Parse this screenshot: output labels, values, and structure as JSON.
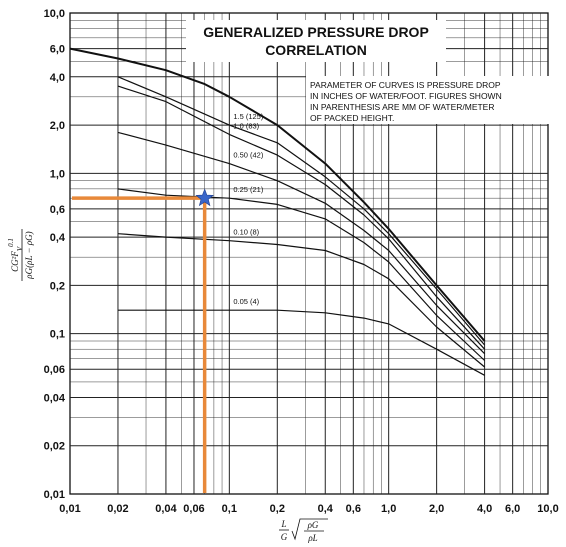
{
  "chart_data": {
    "type": "line",
    "title_lines": [
      "GENERALIZED PRESSURE DROP",
      "CORRELATION"
    ],
    "note_lines": [
      "PARAMETER OF CURVES IS PRESSURE DROP",
      "IN INCHES OF WATER/FOOT. FIGURES SHOWN",
      "IN PARENTHESIS ARE MM OF WATER/METER",
      "OF PACKED HEIGHT."
    ],
    "ylabel": {
      "numerator": "CG²F",
      "exponent": "0.1",
      "sub": "V",
      "denominator": "ρG(ρL − ρG)"
    },
    "xlabel": {
      "frac_num": "L",
      "frac_den": "G",
      "root_num": "ρG",
      "root_den": "ρL"
    },
    "xscale": "log",
    "yscale": "log",
    "xlim": [
      0.01,
      10.0
    ],
    "ylim": [
      0.01,
      10.0
    ],
    "grid": true,
    "xticks": [
      {
        "v": 0.01,
        "label": "0,01"
      },
      {
        "v": 0.02,
        "label": "0,02"
      },
      {
        "v": 0.04,
        "label": "0,04"
      },
      {
        "v": 0.06,
        "label": "0,06"
      },
      {
        "v": 0.1,
        "label": "0,1"
      },
      {
        "v": 0.2,
        "label": "0,2"
      },
      {
        "v": 0.4,
        "label": "0,4"
      },
      {
        "v": 0.6,
        "label": "0,6"
      },
      {
        "v": 1.0,
        "label": "1,0"
      },
      {
        "v": 2.0,
        "label": "2,0"
      },
      {
        "v": 4.0,
        "label": "4,0"
      },
      {
        "v": 6.0,
        "label": "6,0"
      },
      {
        "v": 10.0,
        "label": "10,0"
      }
    ],
    "yticks": [
      {
        "v": 10.0,
        "label": "10,0"
      },
      {
        "v": 6.0,
        "label": "6,0"
      },
      {
        "v": 4.0,
        "label": "4,0"
      },
      {
        "v": 2.0,
        "label": "2,0"
      },
      {
        "v": 1.0,
        "label": "1,0"
      },
      {
        "v": 0.6,
        "label": "0,6"
      },
      {
        "v": 0.4,
        "label": "0,4"
      },
      {
        "v": 0.2,
        "label": "0,2"
      },
      {
        "v": 0.1,
        "label": "0,1"
      },
      {
        "v": 0.06,
        "label": "0,06"
      },
      {
        "v": 0.04,
        "label": "0,04"
      },
      {
        "v": 0.02,
        "label": "0,02"
      },
      {
        "v": 0.01,
        "label": "0,01"
      }
    ],
    "series": [
      {
        "name": "flooding",
        "label": "",
        "x": [
          0.01,
          0.02,
          0.04,
          0.07,
          0.1,
          0.2,
          0.4,
          0.7,
          1.0,
          2.0,
          4.0
        ],
        "y": [
          6.0,
          5.2,
          4.4,
          3.6,
          3.0,
          2.0,
          1.15,
          0.66,
          0.45,
          0.2,
          0.09
        ]
      },
      {
        "name": "1.5",
        "label": "1.5 (125)",
        "x": [
          0.02,
          0.04,
          0.1,
          0.2,
          0.4,
          0.7,
          1.0,
          2.0,
          4.0
        ],
        "y": [
          4.0,
          3.0,
          2.0,
          1.55,
          0.95,
          0.6,
          0.42,
          0.19,
          0.085
        ]
      },
      {
        "name": "1.0",
        "label": "1.0 (83)",
        "x": [
          0.02,
          0.04,
          0.1,
          0.2,
          0.4,
          0.7,
          1.0,
          2.0,
          4.0
        ],
        "y": [
          3.5,
          2.8,
          1.75,
          1.3,
          0.85,
          0.55,
          0.39,
          0.17,
          0.08
        ]
      },
      {
        "name": "0.50",
        "label": "0.50 (42)",
        "x": [
          0.02,
          0.04,
          0.1,
          0.2,
          0.4,
          0.7,
          1.0,
          2.0,
          4.0
        ],
        "y": [
          1.8,
          1.5,
          1.15,
          0.9,
          0.65,
          0.44,
          0.33,
          0.15,
          0.075
        ]
      },
      {
        "name": "0.25",
        "label": "0.25 (21)",
        "x": [
          0.02,
          0.04,
          0.1,
          0.2,
          0.4,
          0.7,
          1.0,
          2.0,
          4.0
        ],
        "y": [
          0.8,
          0.73,
          0.7,
          0.64,
          0.52,
          0.37,
          0.28,
          0.13,
          0.068
        ]
      },
      {
        "name": "0.10",
        "label": "0.10 (8)",
        "x": [
          0.02,
          0.04,
          0.1,
          0.2,
          0.4,
          0.7,
          1.0,
          2.0,
          4.0
        ],
        "y": [
          0.42,
          0.4,
          0.38,
          0.36,
          0.33,
          0.27,
          0.22,
          0.11,
          0.062
        ]
      },
      {
        "name": "0.05",
        "label": "0.05 (4)",
        "x": [
          0.02,
          0.04,
          0.1,
          0.2,
          0.4,
          0.7,
          1.0,
          2.0,
          4.0
        ],
        "y": [
          0.14,
          0.14,
          0.14,
          0.14,
          0.135,
          0.125,
          0.115,
          0.08,
          0.055
        ]
      }
    ],
    "marker": {
      "x": 0.07,
      "y": 0.7,
      "shape": "star",
      "color": "#3a66c9"
    },
    "guide_color": "#e8893a"
  }
}
